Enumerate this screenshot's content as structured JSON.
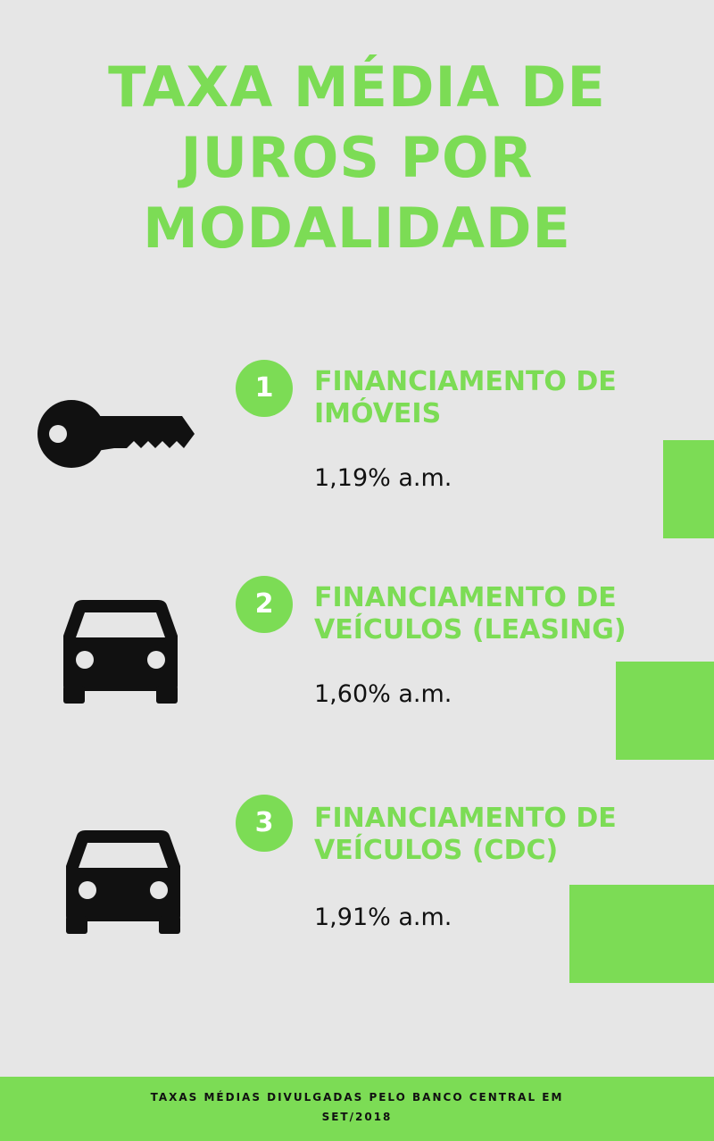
{
  "title": {
    "lines": [
      "TAXA MÉDIA DE",
      "JUROS POR",
      "MODALIDADE"
    ]
  },
  "items": [
    {
      "number": "1",
      "title_lines": [
        "FINANCIAMENTO DE",
        "IMÓVEIS"
      ],
      "rate": "1,19% a.m.",
      "icon": "key-icon"
    },
    {
      "number": "2",
      "title_lines": [
        "FINANCIAMENTO DE",
        "VEÍCULOS (LEASING)"
      ],
      "rate": "1,60% a.m.",
      "icon": "car-icon"
    },
    {
      "number": "3",
      "title_lines": [
        "FINANCIAMENTO DE",
        "VEÍCULOS (CDC)"
      ],
      "rate": "1,91% a.m.",
      "icon": "car-icon"
    }
  ],
  "footer": {
    "lines": [
      "TAXAS MÉDIAS DIVULGADAS PELO BANCO CENTRAL EM",
      "SET/2018"
    ]
  },
  "colors": {
    "accent": "#7cdc55",
    "background": "#e6e6e6",
    "icon": "#111111"
  }
}
